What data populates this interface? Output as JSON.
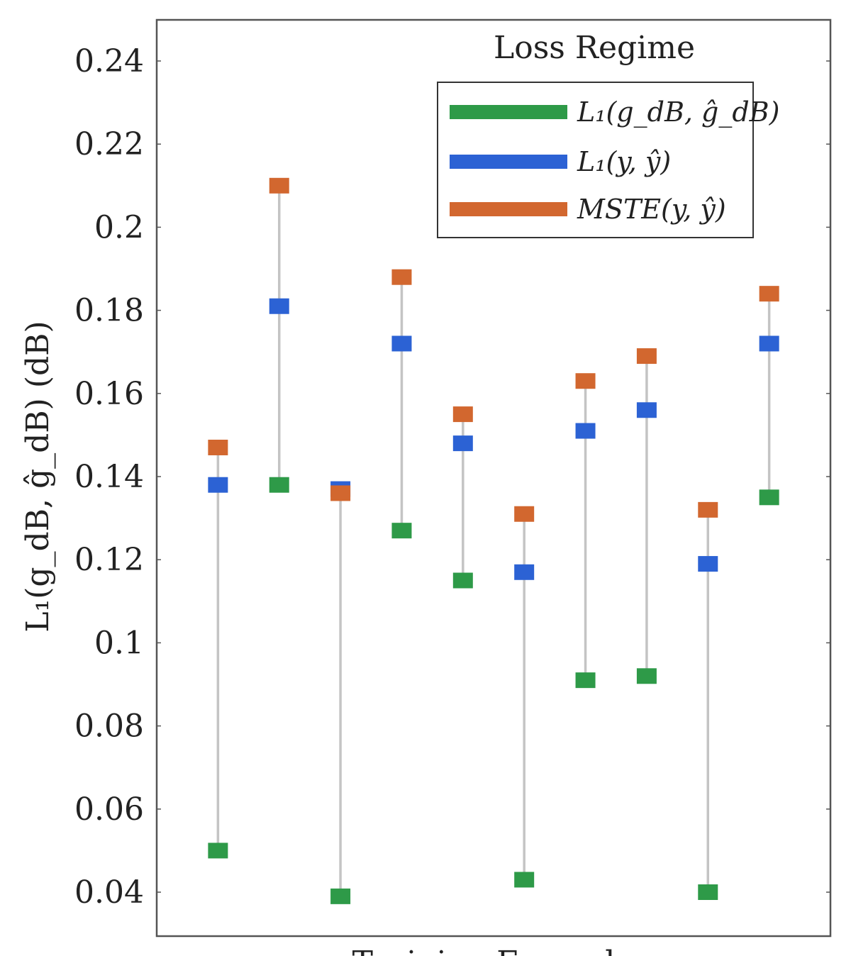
{
  "chart_data": {
    "type": "scatter",
    "title": "",
    "xlabel": "Training Example",
    "ylabel": "L₁(g_dB, ĝ_dB) (dB)",
    "ylim": [
      0.03,
      0.25
    ],
    "yticks": [
      0.04,
      0.06,
      0.08,
      0.1,
      0.12,
      0.14,
      0.16,
      0.18,
      0.2,
      0.22,
      0.24
    ],
    "ytick_labels": [
      "0.04",
      "0.06",
      "0.08",
      "0.1",
      "0.12",
      "0.14",
      "0.16",
      "0.18",
      "0.2",
      "0.22",
      "0.24"
    ],
    "x": [
      1,
      2,
      3,
      4,
      5,
      6,
      7,
      8,
      9,
      10
    ],
    "xlim": [
      0,
      11
    ],
    "grid": false,
    "legend": {
      "title": "Loss Regime",
      "placement": "top-right"
    },
    "series": [
      {
        "name": "L₁(g_dB, ĝ_dB)",
        "color": "#2e9a48",
        "values": [
          0.05,
          0.138,
          0.039,
          0.127,
          0.115,
          0.043,
          0.091,
          0.092,
          0.04,
          0.135
        ]
      },
      {
        "name": "L₁(y, ŷ)",
        "color": "#2c62d4",
        "values": [
          0.138,
          0.181,
          0.137,
          0.172,
          0.148,
          0.117,
          0.151,
          0.156,
          0.119,
          0.172
        ]
      },
      {
        "name": "MSTE(y, ŷ)",
        "color": "#d2672f",
        "values": [
          0.147,
          0.21,
          0.136,
          0.188,
          0.155,
          0.131,
          0.163,
          0.169,
          0.132,
          0.184
        ]
      }
    ],
    "connector_color": "#c4c4c4"
  }
}
